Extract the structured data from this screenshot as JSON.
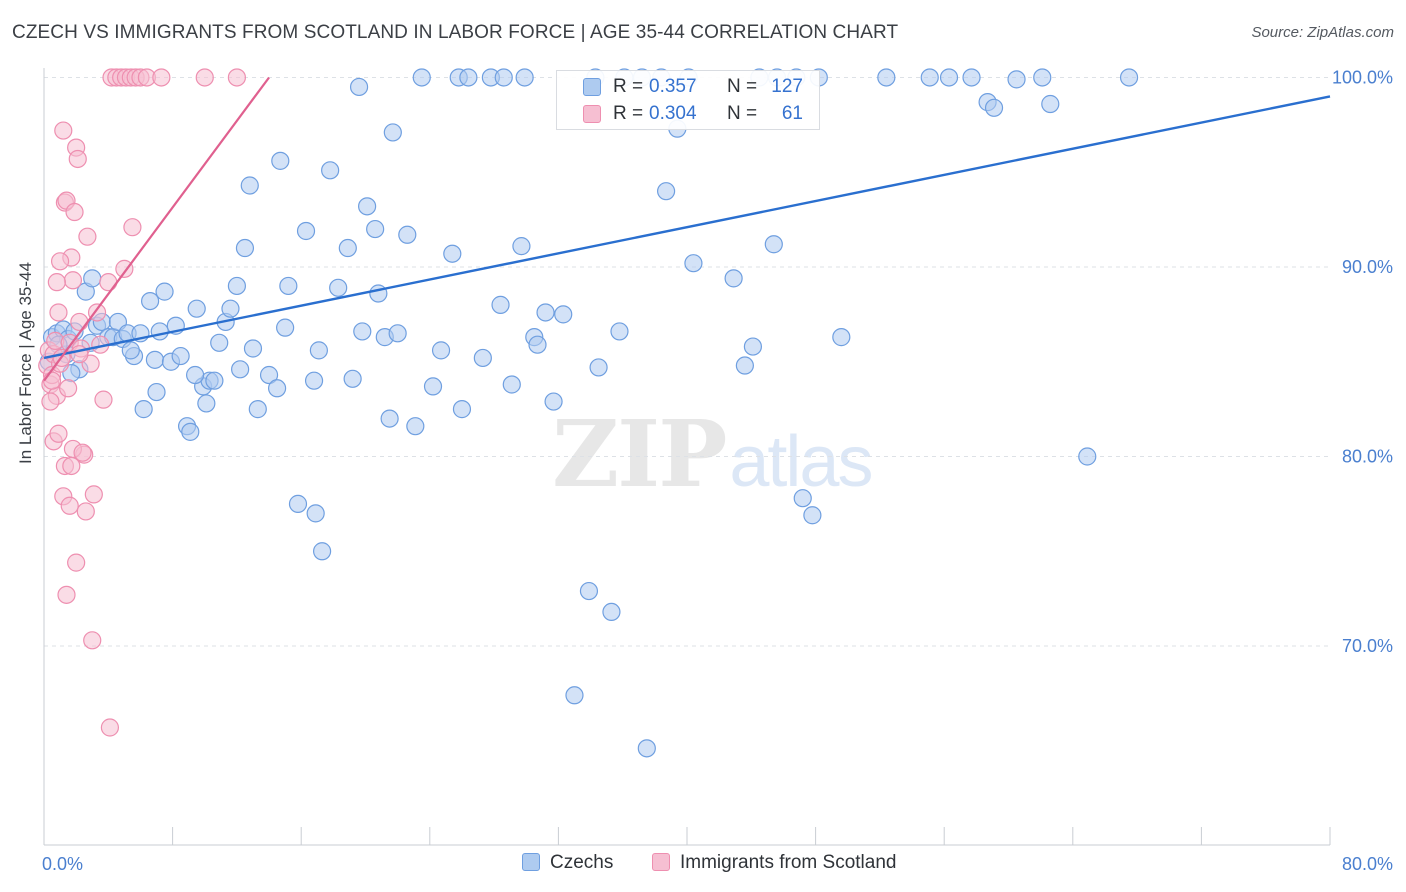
{
  "header": {
    "title": "CZECH VS IMMIGRANTS FROM SCOTLAND IN LABOR FORCE | AGE 35-44 CORRELATION CHART",
    "source": "Source: ZipAtlas.com"
  },
  "watermark": {
    "zip": "ZIP",
    "atlas": "atlas"
  },
  "legend_top": [
    {
      "r_label": "R =",
      "r_value": "0.357",
      "n_label": "N =",
      "n_value": "127"
    },
    {
      "r_label": "R =",
      "r_value": "0.304",
      "n_label": "N =",
      "n_value": "61"
    }
  ],
  "legend_bottom": [
    {
      "label": "Czechs"
    },
    {
      "label": "Immigrants from Scotland"
    }
  ],
  "colors": {
    "czechs_fill": "#aecbf0",
    "czechs_stroke": "#6f9fe0",
    "czechs_line": "#2a6fcf",
    "scot_fill": "#f6bfd2",
    "scot_stroke": "#ee8fb0",
    "scot_line": "#e0608f",
    "grid": "#dde1e6",
    "tick_label": "#4a7fcf"
  },
  "chart_data": {
    "type": "scatter",
    "title": "CZECH VS IMMIGRANTS FROM SCOTLAND IN LABOR FORCE | AGE 35-44 CORRELATION CHART",
    "xlabel": "",
    "ylabel": "In Labor Force | Age 35-44",
    "xlim": [
      0,
      80
    ],
    "ylim": [
      59.5,
      100.5
    ],
    "x_tick_labels": [
      {
        "value": 0,
        "label": "0.0%"
      },
      {
        "value": 80,
        "label": "80.0%"
      }
    ],
    "y_tick_labels": [
      {
        "value": 70,
        "label": "70.0%"
      },
      {
        "value": 80,
        "label": "80.0%"
      },
      {
        "value": 90,
        "label": "90.0%"
      },
      {
        "value": 100,
        "label": "100.0%"
      }
    ],
    "grid": true,
    "legend_position": "top-center",
    "series": [
      {
        "name": "Czechs",
        "R": 0.357,
        "N": 127,
        "trend": {
          "x": [
            0,
            80
          ],
          "y": [
            85.2,
            99.0
          ]
        },
        "points": [
          [
            0.3,
            85.0
          ],
          [
            0.5,
            86.3
          ],
          [
            0.8,
            86.5
          ],
          [
            1.2,
            86.7
          ],
          [
            1.4,
            85.4
          ],
          [
            1.5,
            86.2
          ],
          [
            1.9,
            86.6
          ],
          [
            2.2,
            84.6
          ],
          [
            2.6,
            88.7
          ],
          [
            3.0,
            89.4
          ],
          [
            3.3,
            86.9
          ],
          [
            3.6,
            87.1
          ],
          [
            4.0,
            86.3
          ],
          [
            4.3,
            86.3
          ],
          [
            4.6,
            87.1
          ],
          [
            4.9,
            86.2
          ],
          [
            5.2,
            86.5
          ],
          [
            5.6,
            85.3
          ],
          [
            6.0,
            86.5
          ],
          [
            6.6,
            88.2
          ],
          [
            6.9,
            85.1
          ],
          [
            7.2,
            86.6
          ],
          [
            7.5,
            88.7
          ],
          [
            7.9,
            85.0
          ],
          [
            8.2,
            86.9
          ],
          [
            8.5,
            85.3
          ],
          [
            8.9,
            81.6
          ],
          [
            9.1,
            81.3
          ],
          [
            9.5,
            87.8
          ],
          [
            9.9,
            83.7
          ],
          [
            10.3,
            84.0
          ],
          [
            10.6,
            84.0
          ],
          [
            10.9,
            86.0
          ],
          [
            11.3,
            87.1
          ],
          [
            11.6,
            87.8
          ],
          [
            12.0,
            89.0
          ],
          [
            12.5,
            91.0
          ],
          [
            12.8,
            94.3
          ],
          [
            13.3,
            82.5
          ],
          [
            14.0,
            84.3
          ],
          [
            14.5,
            83.6
          ],
          [
            15.2,
            89.0
          ],
          [
            15.8,
            77.5
          ],
          [
            16.3,
            91.9
          ],
          [
            16.9,
            77.0
          ],
          [
            17.3,
            75.0
          ],
          [
            17.8,
            95.1
          ],
          [
            18.3,
            88.9
          ],
          [
            18.9,
            91.0
          ],
          [
            19.2,
            84.1
          ],
          [
            19.8,
            86.6
          ],
          [
            20.1,
            93.2
          ],
          [
            20.6,
            92.0
          ],
          [
            21.2,
            86.3
          ],
          [
            21.5,
            82.0
          ],
          [
            22.0,
            86.5
          ],
          [
            22.6,
            91.7
          ],
          [
            23.1,
            81.6
          ],
          [
            24.2,
            83.7
          ],
          [
            25.4,
            90.7
          ],
          [
            26.0,
            82.5
          ],
          [
            27.3,
            85.2
          ],
          [
            28.4,
            88.0
          ],
          [
            29.1,
            83.8
          ],
          [
            29.7,
            91.1
          ],
          [
            30.5,
            86.3
          ],
          [
            31.2,
            87.6
          ],
          [
            31.7,
            82.9
          ],
          [
            32.3,
            87.5
          ],
          [
            33.0,
            67.4
          ],
          [
            33.9,
            72.9
          ],
          [
            34.5,
            84.7
          ],
          [
            35.3,
            71.8
          ],
          [
            36.1,
            100.0
          ],
          [
            37.5,
            64.6
          ],
          [
            38.7,
            94.0
          ],
          [
            39.4,
            97.3
          ],
          [
            40.4,
            90.2
          ],
          [
            43.6,
            84.8
          ],
          [
            44.1,
            85.8
          ],
          [
            45.4,
            91.2
          ],
          [
            47.2,
            77.8
          ],
          [
            47.8,
            76.9
          ],
          [
            49.6,
            86.3
          ],
          [
            52.4,
            100.0
          ],
          [
            55.1,
            100.0
          ],
          [
            56.3,
            100.0
          ],
          [
            57.7,
            100.0
          ],
          [
            58.7,
            98.7
          ],
          [
            59.1,
            98.4
          ],
          [
            60.5,
            99.9
          ],
          [
            62.1,
            100.0
          ],
          [
            62.6,
            98.6
          ],
          [
            64.9,
            80.0
          ],
          [
            67.5,
            100.0
          ],
          [
            19.6,
            99.5
          ],
          [
            21.7,
            97.1
          ],
          [
            23.5,
            100.0
          ],
          [
            25.8,
            100.0
          ],
          [
            26.4,
            100.0
          ],
          [
            27.8,
            100.0
          ],
          [
            28.6,
            100.0
          ],
          [
            29.9,
            100.0
          ],
          [
            34.3,
            100.0
          ],
          [
            37.2,
            100.0
          ],
          [
            38.4,
            100.0
          ],
          [
            40.1,
            100.0
          ],
          [
            44.5,
            100.0
          ],
          [
            45.6,
            100.0
          ],
          [
            46.8,
            100.0
          ],
          [
            48.2,
            100.0
          ],
          [
            14.7,
            95.6
          ],
          [
            16.8,
            84.0
          ],
          [
            13.0,
            85.7
          ],
          [
            15.0,
            86.8
          ],
          [
            20.8,
            88.6
          ],
          [
            9.4,
            84.3
          ],
          [
            12.2,
            84.6
          ],
          [
            6.2,
            82.5
          ],
          [
            7.0,
            83.4
          ],
          [
            17.1,
            85.6
          ],
          [
            24.7,
            85.6
          ],
          [
            30.7,
            85.9
          ],
          [
            35.8,
            86.6
          ],
          [
            42.9,
            89.4
          ],
          [
            0.9,
            85.9
          ],
          [
            1.7,
            84.4
          ],
          [
            2.9,
            86.0
          ],
          [
            5.4,
            85.6
          ],
          [
            10.1,
            82.8
          ]
        ]
      },
      {
        "name": "Immigrants from Scotland",
        "R": 0.304,
        "N": 61,
        "trend": {
          "x": [
            0,
            14.0
          ],
          "y": [
            84.0,
            100.0
          ]
        },
        "points": [
          [
            0.2,
            84.8
          ],
          [
            0.3,
            85.6
          ],
          [
            0.4,
            83.8
          ],
          [
            0.5,
            84.3
          ],
          [
            0.6,
            85.4
          ],
          [
            0.7,
            86.1
          ],
          [
            0.8,
            83.2
          ],
          [
            0.9,
            87.6
          ],
          [
            1.0,
            84.9
          ],
          [
            1.1,
            85.2
          ],
          [
            1.2,
            97.2
          ],
          [
            1.3,
            93.4
          ],
          [
            1.4,
            93.5
          ],
          [
            1.5,
            83.6
          ],
          [
            1.6,
            86.0
          ],
          [
            1.7,
            90.5
          ],
          [
            1.8,
            89.3
          ],
          [
            1.9,
            92.9
          ],
          [
            2.0,
            96.3
          ],
          [
            2.1,
            95.7
          ],
          [
            2.2,
            87.1
          ],
          [
            2.3,
            85.7
          ],
          [
            2.5,
            80.1
          ],
          [
            2.7,
            91.6
          ],
          [
            2.9,
            84.9
          ],
          [
            3.1,
            78.0
          ],
          [
            3.3,
            87.6
          ],
          [
            3.5,
            85.9
          ],
          [
            3.7,
            83.0
          ],
          [
            4.0,
            89.2
          ],
          [
            4.2,
            100.0
          ],
          [
            4.5,
            100.0
          ],
          [
            4.8,
            100.0
          ],
          [
            5.1,
            100.0
          ],
          [
            5.4,
            100.0
          ],
          [
            5.7,
            100.0
          ],
          [
            6.0,
            100.0
          ],
          [
            6.4,
            100.0
          ],
          [
            7.3,
            100.0
          ],
          [
            10.0,
            100.0
          ],
          [
            12.0,
            100.0
          ],
          [
            5.5,
            92.1
          ],
          [
            5.0,
            89.9
          ],
          [
            0.6,
            80.8
          ],
          [
            0.9,
            81.2
          ],
          [
            1.2,
            77.9
          ],
          [
            1.3,
            79.5
          ],
          [
            1.4,
            72.7
          ],
          [
            1.6,
            77.4
          ],
          [
            1.7,
            79.5
          ],
          [
            1.8,
            80.4
          ],
          [
            2.0,
            74.4
          ],
          [
            2.4,
            80.2
          ],
          [
            2.6,
            77.1
          ],
          [
            3.0,
            70.3
          ],
          [
            4.1,
            65.7
          ],
          [
            0.4,
            82.9
          ],
          [
            0.5,
            84.0
          ],
          [
            0.8,
            89.2
          ],
          [
            1.0,
            90.3
          ],
          [
            2.2,
            85.4
          ]
        ]
      }
    ]
  }
}
